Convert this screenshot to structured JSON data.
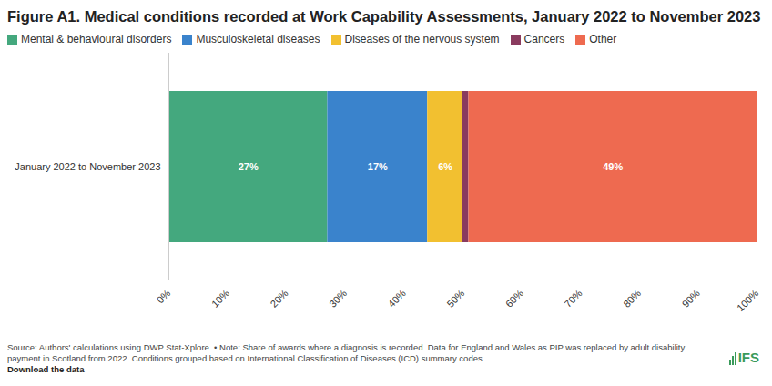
{
  "chart_data": {
    "type": "bar",
    "orientation": "horizontal",
    "stacked": true,
    "title": "Figure A1. Medical conditions recorded at Work Capability Assessments, January 2022 to November 2023",
    "categories": [
      "January 2022 to November 2023"
    ],
    "series": [
      {
        "name": "Mental & behavioural disorders",
        "color": "#44a87e",
        "values": [
          27
        ],
        "value_labels": [
          "27%"
        ]
      },
      {
        "name": "Musculoskeletal diseases",
        "color": "#3a83cc",
        "values": [
          17
        ],
        "value_labels": [
          "17%"
        ]
      },
      {
        "name": "Diseases of the nervous system",
        "color": "#f2c030",
        "values": [
          6
        ],
        "value_labels": [
          "6%"
        ]
      },
      {
        "name": "Cancers",
        "color": "#8a3b5f",
        "values": [
          1
        ],
        "value_labels": [
          null
        ]
      },
      {
        "name": "Other",
        "color": "#ee6a50",
        "values": [
          49
        ],
        "value_labels": [
          "49%"
        ]
      }
    ],
    "data_labels": true,
    "legend": "top-left",
    "grid": false,
    "xlim": [
      0,
      100
    ],
    "xticks": [
      {
        "value": 0,
        "label": "0%"
      },
      {
        "value": 10,
        "label": "10%"
      },
      {
        "value": 20,
        "label": "20%"
      },
      {
        "value": 30,
        "label": "30%"
      },
      {
        "value": 40,
        "label": "40%"
      },
      {
        "value": 50,
        "label": "50%"
      },
      {
        "value": 60,
        "label": "60%"
      },
      {
        "value": 70,
        "label": "70%"
      },
      {
        "value": 80,
        "label": "80%"
      },
      {
        "value": 90,
        "label": "90%"
      },
      {
        "value": 100,
        "label": "100%"
      }
    ],
    "source": "Source: Authors' calculations using DWP Stat-Xplore. • Note: Share of awards where a diagnosis is recorded. Data for England and Wales as PIP was replaced by adult disability payment in Scotland from 2022. Conditions grouped based on International Classification of Diseases (ICD) summary codes.",
    "link": "Download the data",
    "logo": "IFS"
  }
}
